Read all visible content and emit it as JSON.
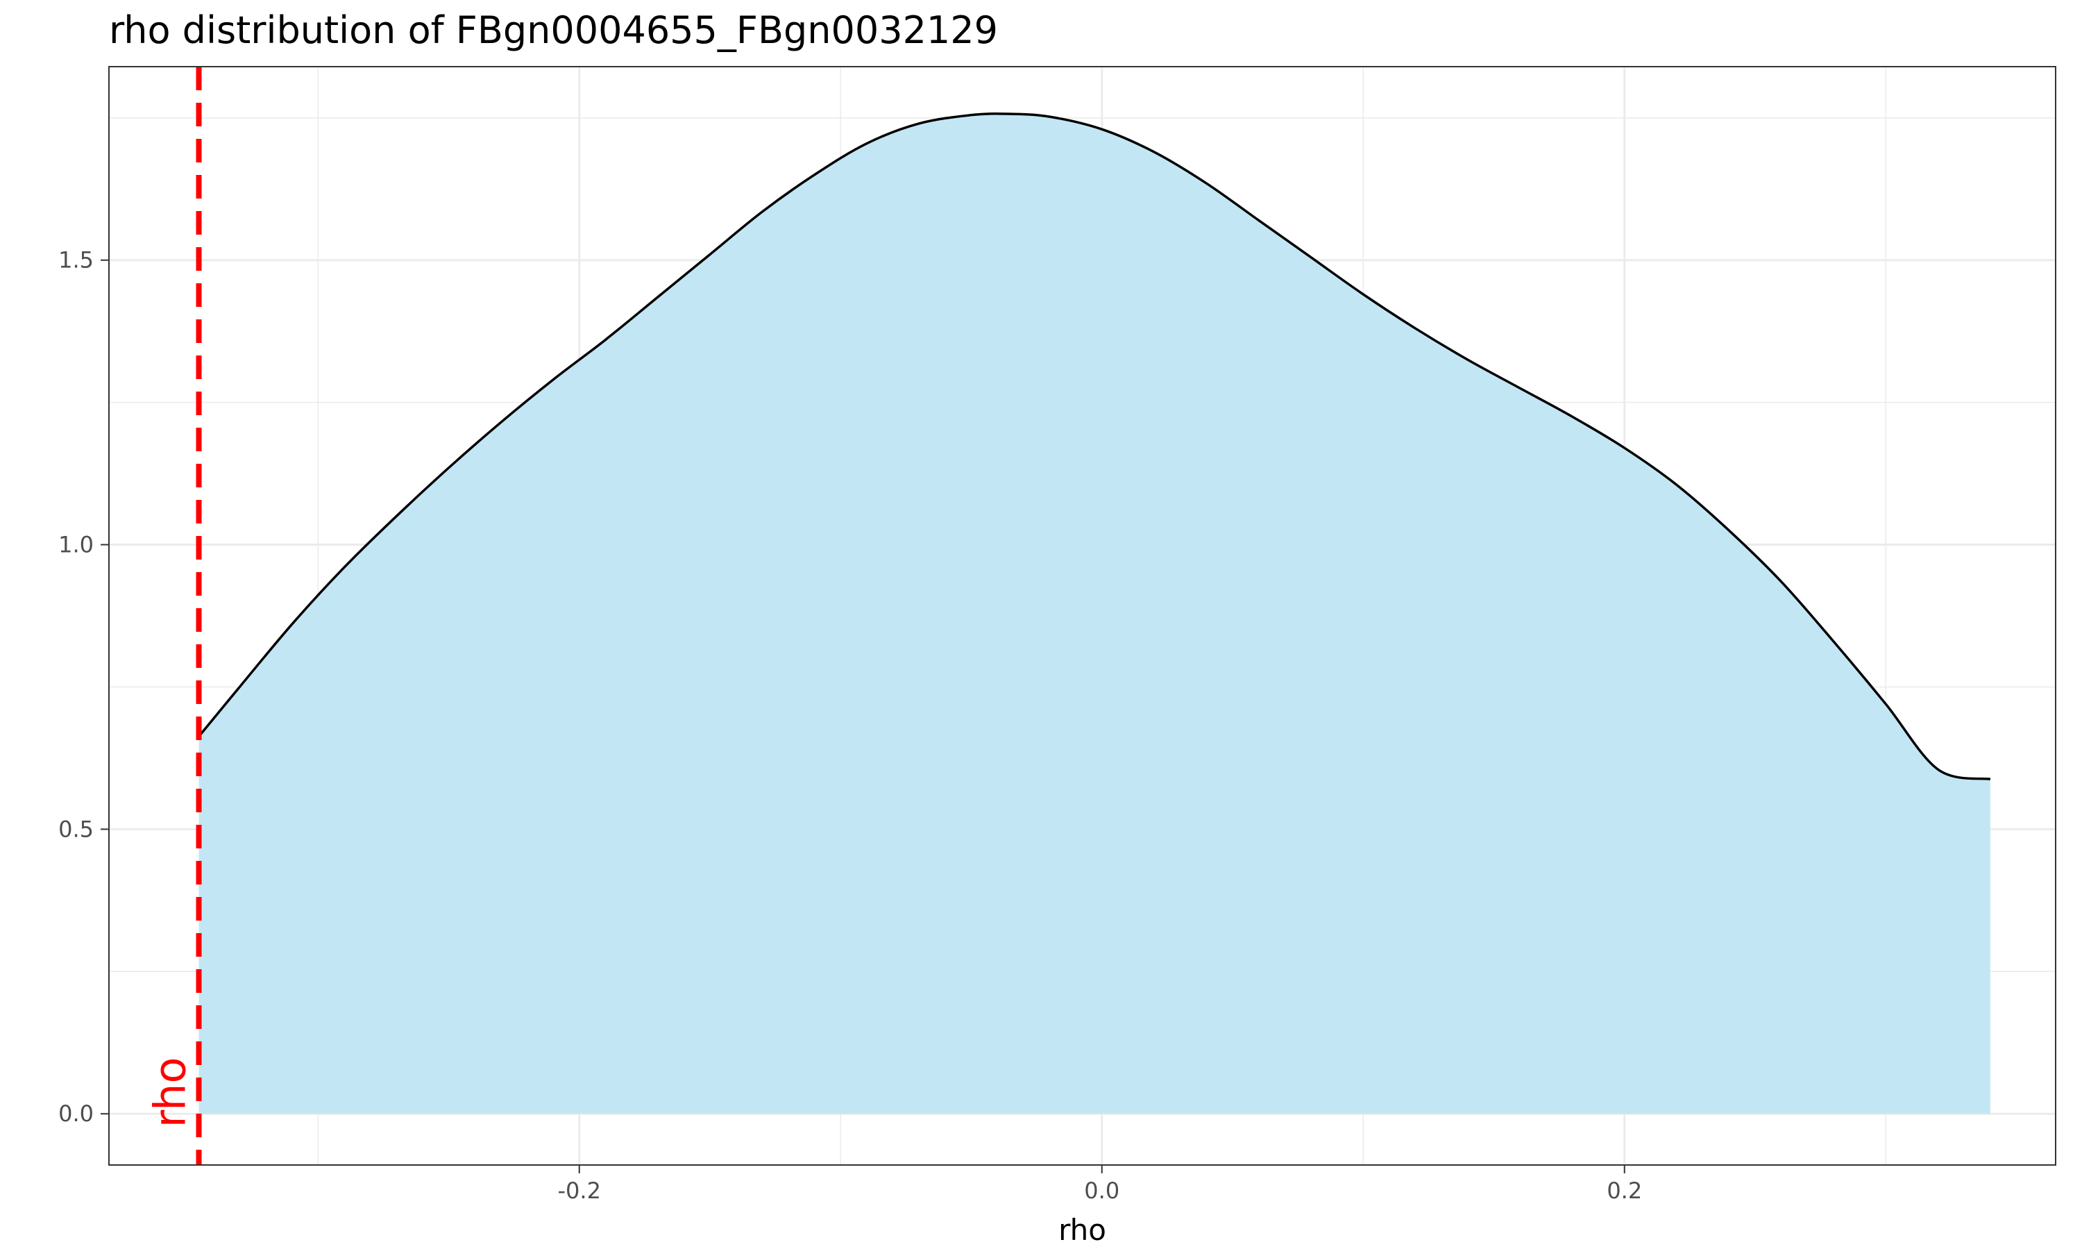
{
  "chart_data": {
    "type": "area",
    "title": "rho distribution of FBgn0004655_FBgn0032129",
    "xlabel": "rho",
    "ylabel": "",
    "xlim": [
      -0.38,
      0.365
    ],
    "ylim": [
      -0.09,
      1.84
    ],
    "x_ticks": [
      {
        "value": -0.2,
        "label": "-0.2"
      },
      {
        "value": 0.0,
        "label": "0.0"
      },
      {
        "value": 0.2,
        "label": "0.2"
      }
    ],
    "x_minor_ticks": [
      -0.3,
      -0.1,
      0.1,
      0.3
    ],
    "y_ticks": [
      {
        "value": 0.0,
        "label": "0.0"
      },
      {
        "value": 0.5,
        "label": "0.5"
      },
      {
        "value": 1.0,
        "label": "1.0"
      },
      {
        "value": 1.5,
        "label": "1.5"
      }
    ],
    "y_minor_ticks": [
      0.25,
      0.75,
      1.25,
      1.75
    ],
    "grid": true,
    "series": [
      {
        "x": [
          -0.3456,
          -0.33,
          -0.31,
          -0.29,
          -0.27,
          -0.25,
          -0.23,
          -0.21,
          -0.19,
          -0.17,
          -0.15,
          -0.13,
          -0.11,
          -0.09,
          -0.07,
          -0.05,
          -0.036,
          -0.02,
          0.0,
          0.02,
          0.04,
          0.06,
          0.08,
          0.1,
          0.12,
          0.14,
          0.16,
          0.18,
          0.2,
          0.22,
          0.24,
          0.26,
          0.28,
          0.3,
          0.32,
          0.34
        ],
        "y": [
          0.663,
          0.75,
          0.86,
          0.96,
          1.05,
          1.135,
          1.215,
          1.29,
          1.36,
          1.435,
          1.51,
          1.585,
          1.65,
          1.705,
          1.74,
          1.755,
          1.757,
          1.752,
          1.73,
          1.69,
          1.635,
          1.57,
          1.505,
          1.44,
          1.38,
          1.325,
          1.275,
          1.225,
          1.17,
          1.105,
          1.025,
          0.935,
          0.83,
          0.72,
          0.605,
          0.588
        ]
      }
    ],
    "colors": {
      "fill": "#c2e6f4",
      "line": "#000000",
      "reference_line": "#ff0000",
      "grid": "#ebebeb",
      "panel_border": "#333333"
    },
    "reference_line": {
      "x": -0.3456,
      "label": "rho"
    }
  }
}
